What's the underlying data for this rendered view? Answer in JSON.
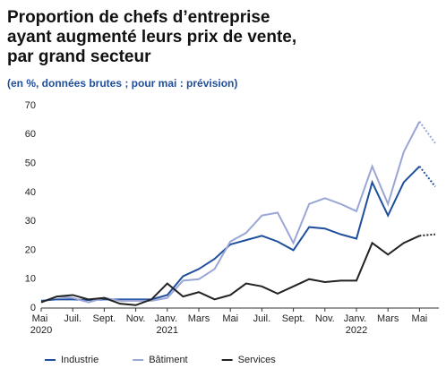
{
  "chart_data": {
    "type": "line",
    "title": [
      "Proportion de chefs d’entreprise",
      "ayant augmenté leurs prix de vente,",
      "par grand secteur"
    ],
    "subtitle": "(en %, données brutes ; pour mai : prévision)",
    "categories": [
      "Mai 2020",
      null,
      "Juil.",
      null,
      "Sept.",
      null,
      "Nov.",
      null,
      "Janv. 2021",
      null,
      "Mars",
      null,
      "Mai",
      null,
      "Juil.",
      null,
      "Sept.",
      null,
      "Nov.",
      null,
      "Janv. 2022",
      null,
      "Mars",
      null,
      "Mai",
      null
    ],
    "series": [
      {
        "name": "Industrie",
        "color": "#1f4e9c",
        "values": [
          2.5,
          3,
          3,
          2.8,
          3,
          3,
          3,
          3,
          4.5,
          11,
          13.5,
          17,
          22,
          23.5,
          25,
          23,
          20,
          28,
          27.5,
          25.5,
          24,
          43.5,
          32,
          43.5,
          49,
          42
        ]
      },
      {
        "name": "Bâtiment",
        "color": "#9aa6d6",
        "values": [
          2,
          4,
          3.5,
          2,
          3.5,
          2.5,
          2.5,
          2.5,
          3.5,
          9.5,
          10,
          13.5,
          23,
          26,
          32,
          33,
          22.5,
          36,
          38,
          36,
          33.5,
          49,
          36,
          54,
          64.5,
          57
        ]
      },
      {
        "name": "Services",
        "color": "#222222",
        "values": [
          2,
          4,
          4.5,
          3,
          3.5,
          1.5,
          1,
          3,
          8.5,
          4,
          5.5,
          3,
          4.5,
          8.5,
          7.5,
          5,
          7.5,
          10,
          9,
          9.5,
          9.5,
          22.5,
          18.5,
          22.5,
          25,
          25.5
        ]
      }
    ],
    "forecast_start": 24,
    "ylim": [
      0,
      70
    ],
    "yticks": [
      0,
      10,
      20,
      30,
      40,
      50,
      60,
      70
    ],
    "grid": false,
    "legend": "bottom"
  }
}
